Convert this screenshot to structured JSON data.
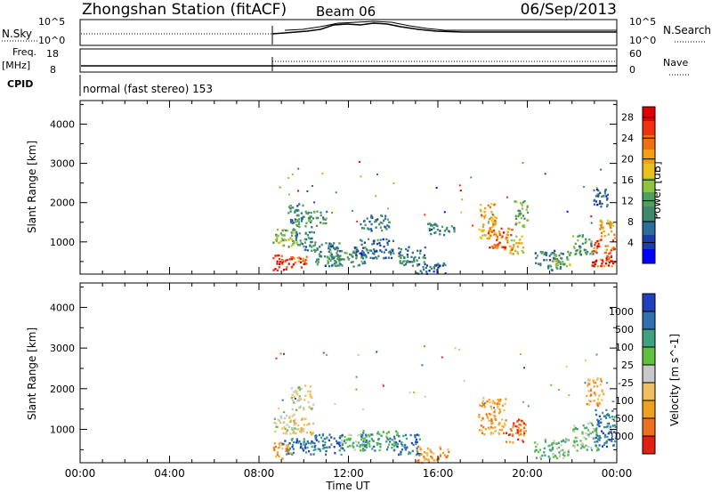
{
  "header": {
    "station": "Zhongshan Station (fitACF)",
    "beam": "Beam 06",
    "date": "06/Sep/2013"
  },
  "top_panels": {
    "nsky_label": "N.Sky",
    "nsky_ticks": [
      "10^5",
      "10^0"
    ],
    "nsearch_label": "N.Search",
    "nsearch_ticks": [
      "10^5",
      "10^0"
    ],
    "freq_label": "Freq.",
    "freq_unit": "[MHz]",
    "freq_ticks": [
      "18",
      "8"
    ],
    "nave_label": "Nave",
    "nave_ticks": [
      "60",
      "0"
    ],
    "cpid_label": "CPID",
    "cpid_text": "normal (fast stereo) 153"
  },
  "colors": {
    "power_scale": [
      "#0000ff",
      "#1a3fa8",
      "#2a6e9a",
      "#3f8a6a",
      "#4fa05a",
      "#8fc23f",
      "#e8c020",
      "#f0a010",
      "#f07010",
      "#ee3010",
      "#e00000"
    ],
    "velocity_scale": [
      "#2040c0",
      "#3070b0",
      "#40a080",
      "#60c040",
      "#c8c8c8",
      "#f0c060",
      "#f0a020",
      "#f07020",
      "#e02010"
    ]
  },
  "chart_data": [
    {
      "type": "heatmap",
      "title": "",
      "xlabel": "Time UT",
      "ylabel": "Slant Range [km]",
      "x_tick_labels": [
        "00:00",
        "04:00",
        "08:00",
        "12:00",
        "16:00",
        "20:00",
        "00:00"
      ],
      "xlim_hours": [
        0,
        24
      ],
      "ylim": [
        180,
        4600
      ],
      "y_tick_labels": [
        "1000",
        "2000",
        "3000",
        "4000"
      ],
      "y_ticks": [
        1000,
        2000,
        3000,
        4000
      ],
      "colorbar": {
        "label": "Power [dB]",
        "tick_labels": [
          "28",
          "24",
          "20",
          "16",
          "12",
          "8",
          "4"
        ],
        "ticks": [
          28,
          24,
          20,
          16,
          12,
          8,
          4
        ],
        "range": [
          0,
          30
        ]
      },
      "blobs": [
        {
          "t0": 8.6,
          "t1": 9.2,
          "r0": 300,
          "r1": 700,
          "v": 28
        },
        {
          "t0": 9.0,
          "t1": 10.2,
          "r0": 350,
          "r1": 650,
          "v": 26
        },
        {
          "t0": 8.6,
          "t1": 9.8,
          "r0": 900,
          "r1": 1400,
          "v": 14
        },
        {
          "t0": 9.6,
          "t1": 10.6,
          "r0": 800,
          "r1": 1300,
          "v": 8
        },
        {
          "t0": 10.4,
          "t1": 11.6,
          "r0": 400,
          "r1": 1000,
          "v": 8
        },
        {
          "t0": 11.0,
          "t1": 12.8,
          "r0": 400,
          "r1": 800,
          "v": 10
        },
        {
          "t0": 12.2,
          "t1": 14.0,
          "r0": 600,
          "r1": 1100,
          "v": 6
        },
        {
          "t0": 14.2,
          "t1": 15.4,
          "r0": 400,
          "r1": 900,
          "v": 8
        },
        {
          "t0": 15.0,
          "t1": 16.3,
          "r0": 200,
          "r1": 500,
          "v": 6
        },
        {
          "t0": 9.2,
          "t1": 10.0,
          "r0": 1500,
          "r1": 2000,
          "v": 8
        },
        {
          "t0": 9.5,
          "t1": 11.0,
          "r0": 1400,
          "r1": 1800,
          "v": 10
        },
        {
          "t0": 12.5,
          "t1": 13.8,
          "r0": 1300,
          "r1": 1700,
          "v": 8
        },
        {
          "t0": 15.5,
          "t1": 16.8,
          "r0": 1200,
          "r1": 1500,
          "v": 8
        },
        {
          "t0": 17.8,
          "t1": 18.6,
          "r0": 1100,
          "r1": 2000,
          "v": 20
        },
        {
          "t0": 18.2,
          "t1": 19.3,
          "r0": 800,
          "r1": 1400,
          "v": 24
        },
        {
          "t0": 19.2,
          "t1": 19.8,
          "r0": 700,
          "r1": 1200,
          "v": 18
        },
        {
          "t0": 19.4,
          "t1": 20.0,
          "r0": 1400,
          "r1": 2100,
          "v": 12
        },
        {
          "t0": 20.3,
          "t1": 21.6,
          "r0": 300,
          "r1": 800,
          "v": 8
        },
        {
          "t0": 21.1,
          "t1": 21.9,
          "r0": 400,
          "r1": 800,
          "v": 14
        },
        {
          "t0": 22.0,
          "t1": 23.0,
          "r0": 700,
          "r1": 1200,
          "v": 10
        },
        {
          "t0": 22.8,
          "t1": 23.9,
          "r0": 400,
          "r1": 1100,
          "v": 26
        },
        {
          "t0": 23.2,
          "t1": 23.95,
          "r0": 1100,
          "r1": 1600,
          "v": 20
        },
        {
          "t0": 22.9,
          "t1": 23.6,
          "r0": 1900,
          "r1": 2400,
          "v": 6
        }
      ]
    },
    {
      "type": "heatmap",
      "title": "",
      "xlabel": "Time UT",
      "ylabel": "Slant Range [km]",
      "x_tick_labels": [
        "00:00",
        "04:00",
        "08:00",
        "12:00",
        "16:00",
        "20:00",
        "00:00"
      ],
      "xlim_hours": [
        0,
        24
      ],
      "ylim": [
        180,
        4600
      ],
      "y_tick_labels": [
        "1000",
        "2000",
        "3000",
        "4000"
      ],
      "y_ticks": [
        1000,
        2000,
        3000,
        4000
      ],
      "colorbar": {
        "label": "Velocity [m s^-1]",
        "tick_labels": [
          "1000",
          "500",
          "100",
          "25",
          "-25",
          "-100",
          "-500",
          "-1000"
        ]
      },
      "blobs": [
        {
          "t0": 8.6,
          "t1": 9.4,
          "r0": 300,
          "r1": 700,
          "c": 6
        },
        {
          "t0": 9.0,
          "t1": 10.5,
          "r0": 400,
          "r1": 800,
          "c": 1
        },
        {
          "t0": 8.6,
          "t1": 9.6,
          "r0": 900,
          "r1": 1400,
          "c": 4
        },
        {
          "t0": 9.5,
          "t1": 10.4,
          "r0": 900,
          "r1": 1300,
          "c": 5
        },
        {
          "t0": 10.4,
          "t1": 11.8,
          "r0": 400,
          "r1": 900,
          "c": 1
        },
        {
          "t0": 11.5,
          "t1": 13.0,
          "r0": 500,
          "r1": 900,
          "c": 3
        },
        {
          "t0": 12.5,
          "t1": 14.2,
          "r0": 500,
          "r1": 1000,
          "c": 2
        },
        {
          "t0": 14.0,
          "t1": 15.2,
          "r0": 400,
          "r1": 900,
          "c": 1
        },
        {
          "t0": 15.0,
          "t1": 16.5,
          "r0": 200,
          "r1": 600,
          "c": 6
        },
        {
          "t0": 9.4,
          "t1": 10.4,
          "r0": 1500,
          "r1": 2100,
          "c": 4
        },
        {
          "t0": 17.8,
          "t1": 19.0,
          "r0": 900,
          "r1": 1800,
          "c": 6
        },
        {
          "t0": 19.0,
          "t1": 19.9,
          "r0": 700,
          "r1": 1300,
          "c": 7
        },
        {
          "t0": 20.3,
          "t1": 21.8,
          "r0": 300,
          "r1": 800,
          "c": 3
        },
        {
          "t0": 22.0,
          "t1": 23.2,
          "r0": 500,
          "r1": 1200,
          "c": 3
        },
        {
          "t0": 23.0,
          "t1": 23.95,
          "r0": 600,
          "r1": 1500,
          "c": 1
        },
        {
          "t0": 22.6,
          "t1": 23.4,
          "r0": 1600,
          "r1": 2300,
          "c": 6
        }
      ]
    }
  ]
}
